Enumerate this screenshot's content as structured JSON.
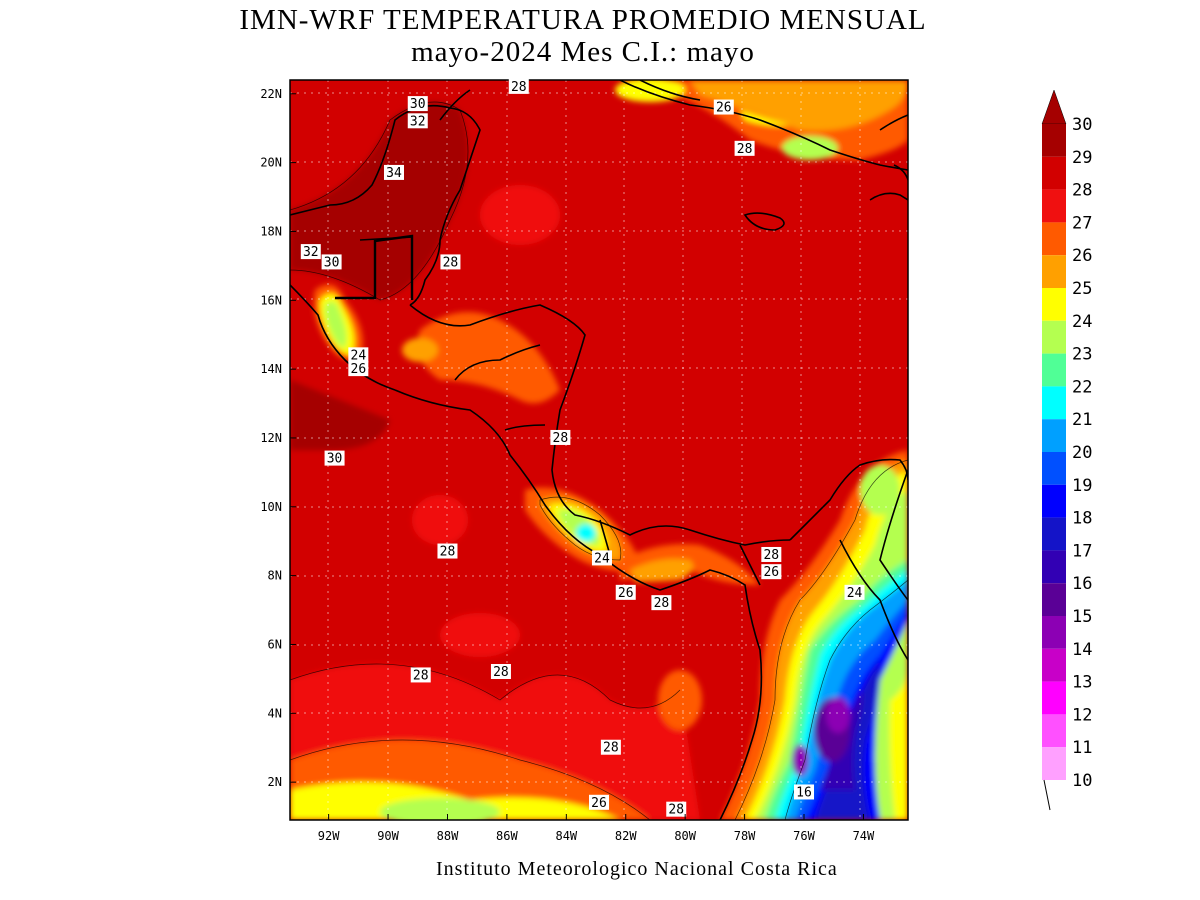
{
  "title_line1": "IMN-WRF  TEMPERATURA PROMEDIO MENSUAL",
  "title_line2": "mayo-2024 Mes C.I.: mayo",
  "credit": "Instituto Meteorologico Nacional Costa Rica",
  "lat_labels": [
    "22N",
    "20N",
    "18N",
    "16N",
    "14N",
    "12N",
    "10N",
    "8N",
    "6N",
    "4N",
    "2N"
  ],
  "lon_labels": [
    "92W",
    "90W",
    "88W",
    "86W",
    "84W",
    "82W",
    "80W",
    "78W",
    "76W",
    "74W"
  ],
  "colorbar": {
    "levels": [
      "30",
      "29",
      "28",
      "27",
      "26",
      "25",
      "24",
      "23",
      "22",
      "21",
      "20",
      "19",
      "18",
      "17",
      "16",
      "15",
      "14",
      "13",
      "12",
      "11",
      "10"
    ],
    "colors": [
      "#a50000",
      "#d20000",
      "#f01010",
      "#ff5a00",
      "#ffa000",
      "#ffff00",
      "#b4ff50",
      "#50ff96",
      "#00ffff",
      "#00a0ff",
      "#0050ff",
      "#0000ff",
      "#1414c8",
      "#3200b4",
      "#5a0096",
      "#8c00b4",
      "#c800c8",
      "#ff00ff",
      "#ff50ff",
      "#ffa0ff"
    ]
  },
  "contour_labels": [
    {
      "text": "28",
      "lon": -85.6,
      "lat": 22.2
    },
    {
      "text": "30",
      "lon": -89.0,
      "lat": 21.7
    },
    {
      "text": "32",
      "lon": -89.0,
      "lat": 21.2
    },
    {
      "text": "34",
      "lon": -89.8,
      "lat": 19.7
    },
    {
      "text": "26",
      "lon": -78.7,
      "lat": 21.6
    },
    {
      "text": "28",
      "lon": -78.0,
      "lat": 20.4
    },
    {
      "text": "32",
      "lon": -92.6,
      "lat": 17.4
    },
    {
      "text": "30",
      "lon": -91.9,
      "lat": 17.1
    },
    {
      "text": "28",
      "lon": -87.9,
      "lat": 17.1
    },
    {
      "text": "24",
      "lon": -91.0,
      "lat": 14.4
    },
    {
      "text": "26",
      "lon": -91.0,
      "lat": 14.0
    },
    {
      "text": "28",
      "lon": -84.2,
      "lat": 12.0
    },
    {
      "text": "30",
      "lon": -91.8,
      "lat": 11.4
    },
    {
      "text": "28",
      "lon": -88.0,
      "lat": 8.7
    },
    {
      "text": "24",
      "lon": -82.8,
      "lat": 8.5
    },
    {
      "text": "26",
      "lon": -82.0,
      "lat": 7.5
    },
    {
      "text": "28",
      "lon": -80.8,
      "lat": 7.2
    },
    {
      "text": "28",
      "lon": -77.1,
      "lat": 8.6
    },
    {
      "text": "26",
      "lon": -77.1,
      "lat": 8.1
    },
    {
      "text": "24",
      "lon": -74.3,
      "lat": 7.5
    },
    {
      "text": "28",
      "lon": -88.9,
      "lat": 5.1
    },
    {
      "text": "28",
      "lon": -86.2,
      "lat": 5.2
    },
    {
      "text": "28",
      "lon": -82.5,
      "lat": 3.0
    },
    {
      "text": "26",
      "lon": -82.9,
      "lat": 1.4
    },
    {
      "text": "28",
      "lon": -80.3,
      "lat": 1.2
    },
    {
      "text": "16",
      "lon": -76.0,
      "lat": 1.7
    }
  ]
}
